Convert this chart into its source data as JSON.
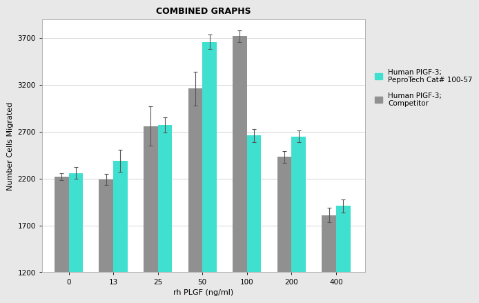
{
  "title": "COMBINED GRAPHS",
  "xlabel": "rh PLGF (ng/ml)",
  "ylabel": "Number Cells Migrated",
  "categories": [
    0,
    13,
    25,
    50,
    100,
    200,
    400
  ],
  "pepro_values": [
    2260,
    2390,
    2770,
    3660,
    2660,
    2650,
    1910
  ],
  "comp_values": [
    2220,
    2190,
    2760,
    3160,
    3720,
    2430,
    1810
  ],
  "pepro_errors": [
    60,
    120,
    80,
    80,
    70,
    60,
    70
  ],
  "comp_errors": [
    40,
    60,
    210,
    180,
    60,
    60,
    80
  ],
  "pepro_color": "#40E0D0",
  "comp_color": "#909090",
  "ylim": [
    1200,
    3900
  ],
  "yticks": [
    1200,
    1700,
    2200,
    2700,
    3200,
    3700
  ],
  "legend_pepro": "Human PlGF-3;\nPeproTech Cat# 100-57",
  "legend_comp": "Human PlGF-3;\nCompetitor",
  "bar_width": 0.32,
  "fig_width": 6.5,
  "fig_height": 5.02,
  "title_fontsize": 9,
  "axis_label_fontsize": 8,
  "tick_fontsize": 7.5,
  "legend_fontsize": 7.5,
  "outer_bg": "#e8e8e8",
  "inner_bg": "#ffffff"
}
